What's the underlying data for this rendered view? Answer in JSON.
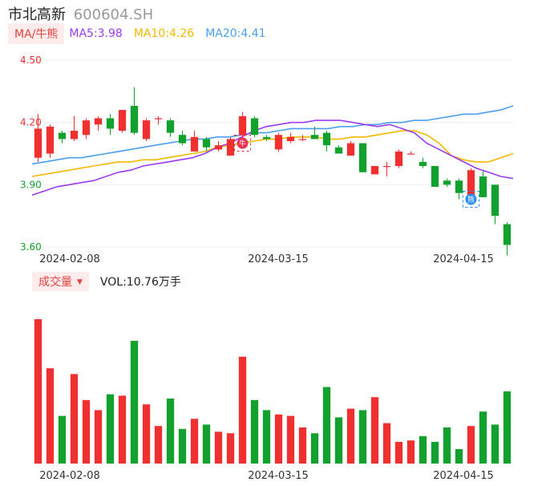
{
  "header": {
    "name": "市北高新",
    "code": "600604.SH"
  },
  "ma": {
    "tag": "MA/牛熊",
    "items": [
      {
        "label": "MA5:3.98",
        "color": "#9c3cf0"
      },
      {
        "label": "MA10:4.26",
        "color": "#f5b800"
      },
      {
        "label": "MA20:4.41",
        "color": "#4a9ff0"
      }
    ]
  },
  "volume_header": {
    "tag": "成交量",
    "text": "VOL:10.76万手"
  },
  "colors": {
    "up": "#f03030",
    "down": "#12a12c",
    "up_axis": "#f03030",
    "down_axis": "#12a12c"
  },
  "icons": {
    "bull_marker": "bull-icon",
    "bear_marker": "bear-icon",
    "bull_glyph": "牛",
    "bear_glyph": "熊"
  },
  "chart_data": {
    "type": "candlestick",
    "price_axis": {
      "ticks": [
        "4.50",
        "4.20",
        "3.90",
        "3.60"
      ],
      "ylim": [
        3.6,
        4.5
      ]
    },
    "x_labels": [
      "2024-02-08",
      "2024-03-15",
      "2024-04-15"
    ],
    "candles": [
      {
        "o": 4.03,
        "c": 4.17,
        "h": 4.24,
        "l": 4.01
      },
      {
        "o": 4.05,
        "c": 4.18,
        "h": 4.19,
        "l": 4.03
      },
      {
        "o": 4.15,
        "c": 4.12,
        "h": 4.16,
        "l": 4.1
      },
      {
        "o": 4.12,
        "c": 4.16,
        "h": 4.23,
        "l": 4.11
      },
      {
        "o": 4.14,
        "c": 4.21,
        "h": 4.22,
        "l": 4.12
      },
      {
        "o": 4.19,
        "c": 4.22,
        "h": 4.23,
        "l": 4.16
      },
      {
        "o": 4.22,
        "c": 4.17,
        "h": 4.24,
        "l": 4.14
      },
      {
        "o": 4.16,
        "c": 4.26,
        "h": 4.26,
        "l": 4.15
      },
      {
        "o": 4.28,
        "c": 4.15,
        "h": 4.37,
        "l": 4.14
      },
      {
        "o": 4.12,
        "c": 4.21,
        "h": 4.22,
        "l": 4.11
      },
      {
        "o": 4.22,
        "c": 4.22,
        "h": 4.23,
        "l": 4.19
      },
      {
        "o": 4.21,
        "c": 4.15,
        "h": 4.22,
        "l": 4.13
      },
      {
        "o": 4.14,
        "c": 4.1,
        "h": 4.16,
        "l": 4.09
      },
      {
        "o": 4.06,
        "c": 4.13,
        "h": 4.16,
        "l": 4.06
      },
      {
        "o": 4.12,
        "c": 4.08,
        "h": 4.13,
        "l": 4.06
      },
      {
        "o": 4.07,
        "c": 4.09,
        "h": 4.11,
        "l": 4.06
      },
      {
        "o": 4.04,
        "c": 4.12,
        "h": 4.13,
        "l": 4.04
      },
      {
        "o": 4.14,
        "c": 4.23,
        "h": 4.25,
        "l": 4.1
      },
      {
        "o": 4.22,
        "c": 4.14,
        "h": 4.23,
        "l": 4.13
      },
      {
        "o": 4.13,
        "c": 4.12,
        "h": 4.14,
        "l": 4.11
      },
      {
        "o": 4.07,
        "c": 4.14,
        "h": 4.15,
        "l": 4.06
      },
      {
        "o": 4.11,
        "c": 4.13,
        "h": 4.15,
        "l": 4.1
      },
      {
        "o": 4.12,
        "c": 4.12,
        "h": 4.14,
        "l": 4.11
      },
      {
        "o": 4.14,
        "c": 4.12,
        "h": 4.18,
        "l": 4.12
      },
      {
        "o": 4.15,
        "c": 4.09,
        "h": 4.16,
        "l": 4.06
      },
      {
        "o": 4.08,
        "c": 4.05,
        "h": 4.09,
        "l": 4.05
      },
      {
        "o": 4.04,
        "c": 4.1,
        "h": 4.11,
        "l": 4.04
      },
      {
        "o": 4.1,
        "c": 3.96,
        "h": 4.1,
        "l": 3.96
      },
      {
        "o": 3.95,
        "c": 3.99,
        "h": 3.99,
        "l": 3.95
      },
      {
        "o": 3.99,
        "c": 3.99,
        "h": 4.01,
        "l": 3.94
      },
      {
        "o": 3.99,
        "c": 4.06,
        "h": 4.07,
        "l": 3.98
      },
      {
        "o": 4.05,
        "c": 4.05,
        "h": 4.06,
        "l": 4.05
      },
      {
        "o": 4.01,
        "c": 3.99,
        "h": 4.03,
        "l": 3.98
      },
      {
        "o": 3.99,
        "c": 3.89,
        "h": 3.99,
        "l": 3.89
      },
      {
        "o": 3.92,
        "c": 3.9,
        "h": 3.93,
        "l": 3.89
      },
      {
        "o": 3.92,
        "c": 3.86,
        "h": 3.93,
        "l": 3.83
      },
      {
        "o": 3.85,
        "c": 3.97,
        "h": 3.98,
        "l": 3.84
      },
      {
        "o": 3.94,
        "c": 3.84,
        "h": 3.97,
        "l": 3.84
      },
      {
        "o": 3.9,
        "c": 3.75,
        "h": 3.9,
        "l": 3.71
      },
      {
        "o": 3.71,
        "c": 3.61,
        "h": 3.72,
        "l": 3.56
      }
    ],
    "ma5": [
      3.85,
      3.87,
      3.89,
      3.9,
      3.91,
      3.92,
      3.94,
      3.96,
      3.97,
      3.99,
      4.0,
      4.01,
      4.02,
      4.03,
      4.05,
      4.08,
      4.1,
      4.13,
      4.16,
      4.18,
      4.19,
      4.2,
      4.2,
      4.21,
      4.21,
      4.21,
      4.2,
      4.19,
      4.18,
      4.19,
      4.17,
      4.15,
      4.1,
      4.07,
      4.04,
      4.01,
      3.98,
      3.96,
      3.94,
      3.93
    ],
    "ma10": [
      3.94,
      3.95,
      3.96,
      3.97,
      3.98,
      3.99,
      4.0,
      4.01,
      4.01,
      4.02,
      4.02,
      4.03,
      4.04,
      4.05,
      4.06,
      4.08,
      4.09,
      4.1,
      4.11,
      4.12,
      4.12,
      4.13,
      4.13,
      4.13,
      4.12,
      4.12,
      4.13,
      4.13,
      4.14,
      4.15,
      4.16,
      4.16,
      4.14,
      4.1,
      4.04,
      4.02,
      4.01,
      4.01,
      4.03,
      4.05
    ],
    "ma20": [
      4.0,
      4.01,
      4.02,
      4.03,
      4.03,
      4.04,
      4.05,
      4.06,
      4.07,
      4.08,
      4.09,
      4.1,
      4.11,
      4.12,
      4.12,
      4.13,
      4.13,
      4.14,
      4.15,
      4.15,
      4.16,
      4.17,
      4.17,
      4.17,
      4.17,
      4.18,
      4.18,
      4.19,
      4.19,
      4.2,
      4.2,
      4.21,
      4.21,
      4.22,
      4.23,
      4.24,
      4.24,
      4.25,
      4.26,
      4.28
    ],
    "markers": [
      {
        "index": 17,
        "type": "bull",
        "price": 4.1
      },
      {
        "index": 36,
        "type": "bear",
        "price": 3.83
      }
    ],
    "volume": [
      100,
      66,
      33,
      62,
      44,
      37,
      48,
      47,
      85,
      41,
      26,
      45,
      24,
      31,
      27,
      22,
      21,
      74,
      44,
      37,
      34,
      33,
      25,
      21,
      53,
      32,
      38,
      37,
      46,
      28,
      15,
      16,
      19,
      15,
      25,
      10,
      26,
      36,
      27,
      50
    ]
  }
}
